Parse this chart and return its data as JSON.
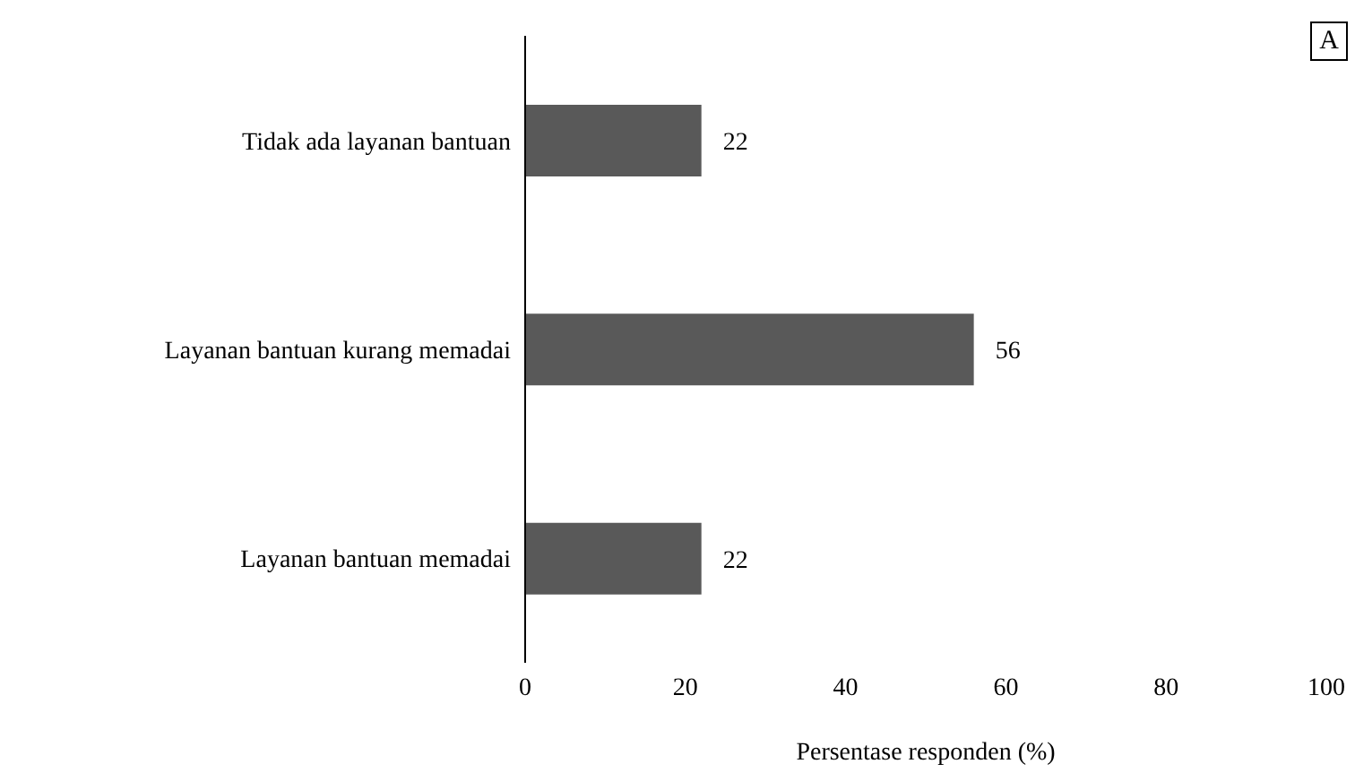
{
  "chart_data": {
    "type": "bar",
    "orientation": "horizontal",
    "categories": [
      "Tidak ada layanan bantuan",
      "Layanan bantuan kurang memadai",
      "Layanan bantuan memadai"
    ],
    "values": [
      22,
      56,
      22
    ],
    "color": "#595959",
    "xlim": [
      0,
      100
    ],
    "xticks": [
      0,
      20,
      40,
      60,
      80,
      100
    ],
    "xlabel": "Persentase responden (%)",
    "data_labels": true,
    "grid": false,
    "annotations": [
      "A"
    ]
  }
}
